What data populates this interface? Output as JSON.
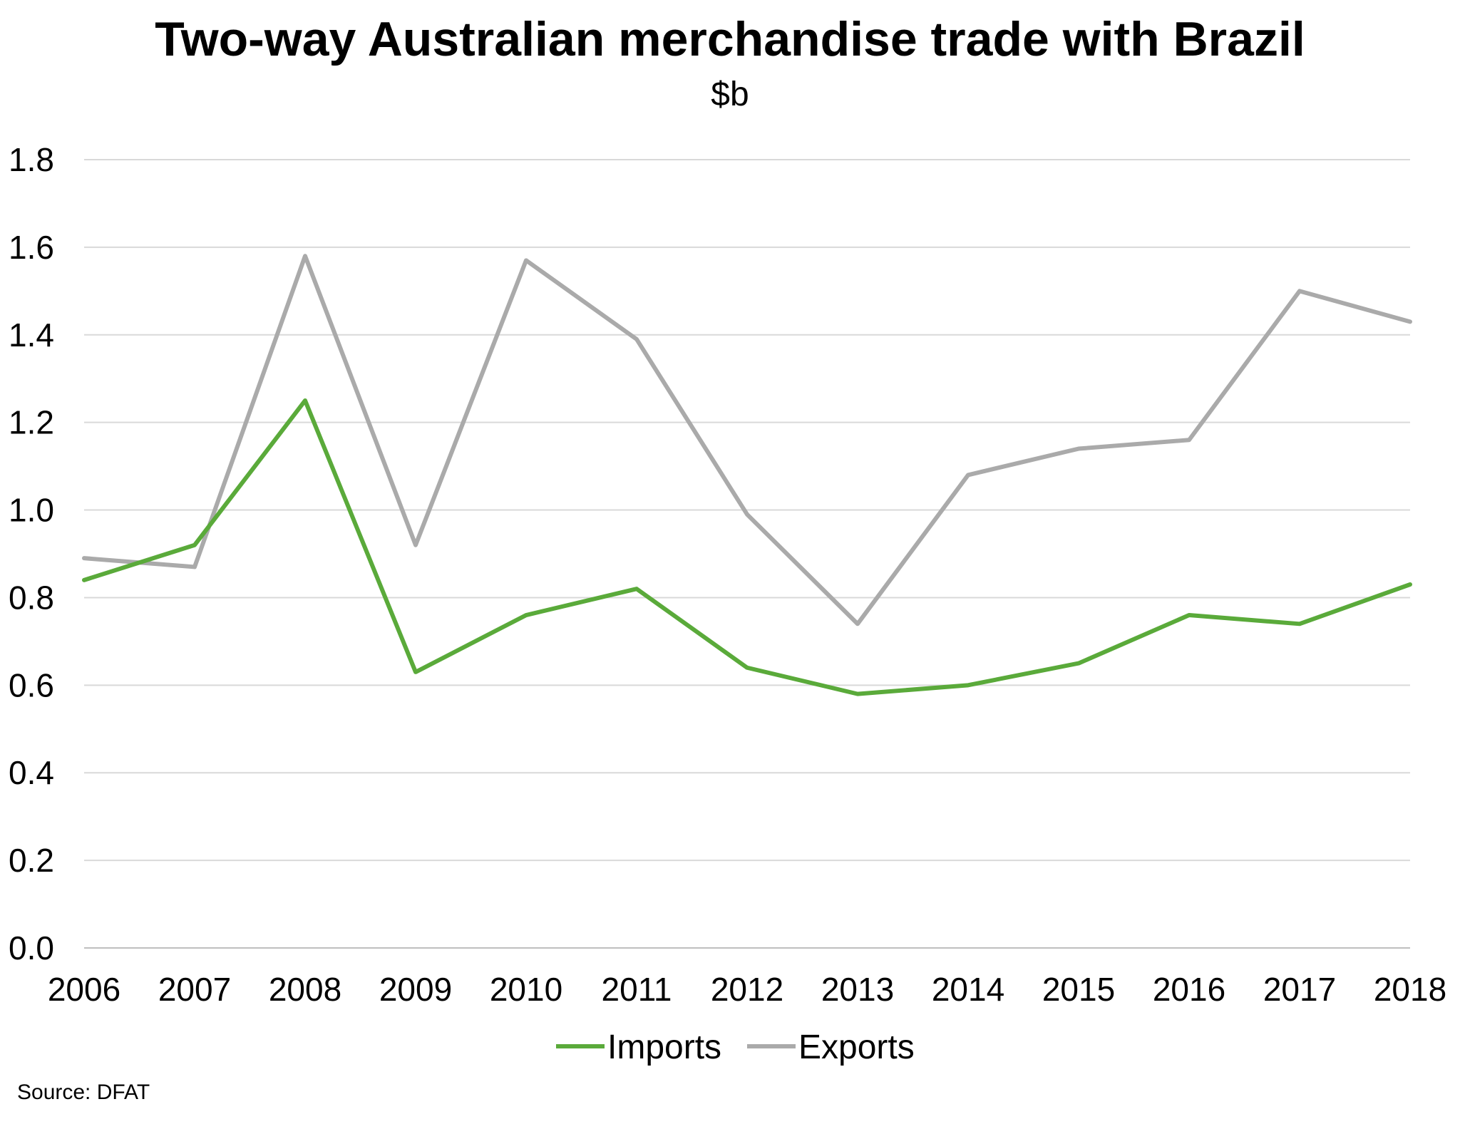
{
  "chart_data": {
    "type": "line",
    "title": "Two-way Australian merchandise trade with Brazil",
    "subtitle": "$b",
    "xlabel": "",
    "ylabel": "",
    "ylim": [
      0,
      1.8
    ],
    "yticks": [
      "0.0",
      "0.2",
      "0.4",
      "0.6",
      "0.8",
      "1.0",
      "1.2",
      "1.4",
      "1.6",
      "1.8"
    ],
    "categories": [
      "2006",
      "2007",
      "2008",
      "2009",
      "2010",
      "2011",
      "2012",
      "2013",
      "2014",
      "2015",
      "2016",
      "2017",
      "2018"
    ],
    "series": [
      {
        "name": "Imports",
        "color": "#5aaa3a",
        "values": [
          0.84,
          0.92,
          1.25,
          0.63,
          0.76,
          0.82,
          0.64,
          0.58,
          0.6,
          0.65,
          0.76,
          0.74,
          0.83
        ]
      },
      {
        "name": "Exports",
        "color": "#aaaaaa",
        "values": [
          0.89,
          0.87,
          1.58,
          0.92,
          1.57,
          1.39,
          0.99,
          0.74,
          1.08,
          1.14,
          1.16,
          1.5,
          1.43
        ]
      }
    ],
    "grid": true,
    "legend": "bottom",
    "source": "Source: DFAT"
  }
}
